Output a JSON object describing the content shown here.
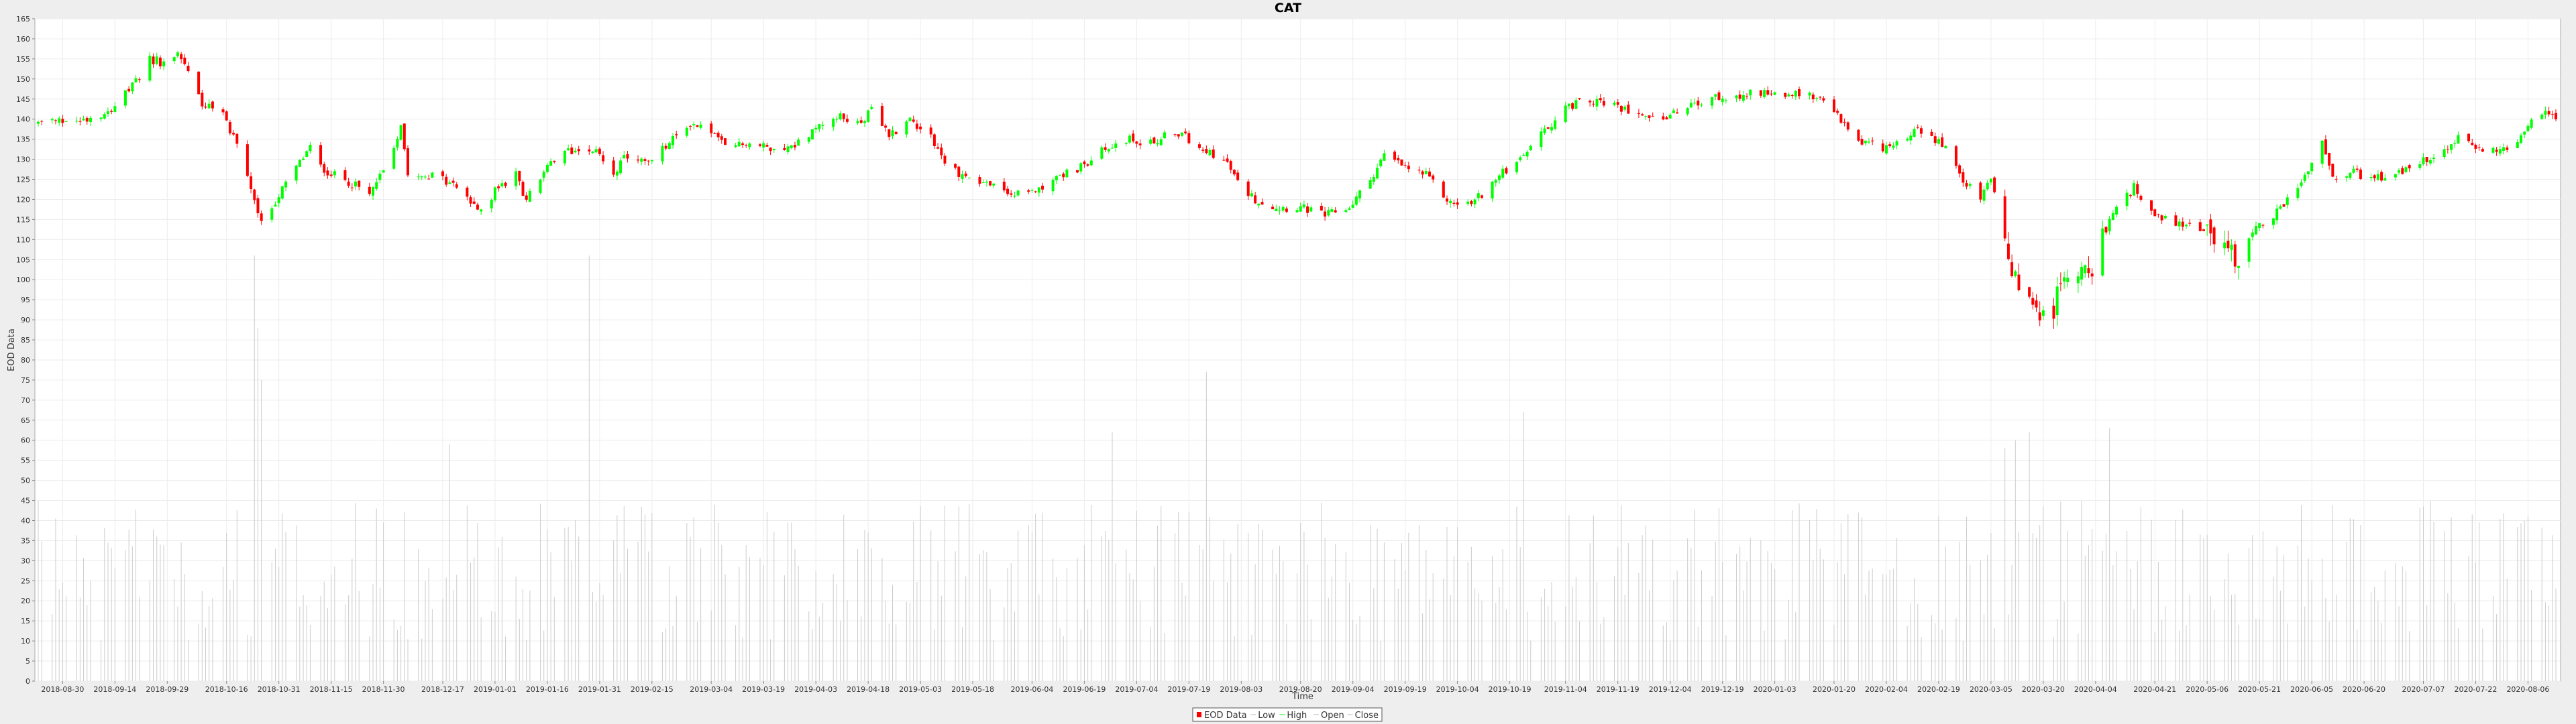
{
  "colors": {
    "background": "#eeeeee",
    "plot_background": "#ffffff",
    "gridline": "#ececec",
    "up_candle": "#00ff00",
    "down_candle": "#ff0000",
    "volume_bar": "#cccccc",
    "axis": "#888888"
  },
  "chart_data": {
    "type": "candlestick",
    "title": "CAT",
    "xlabel": "Time",
    "ylabel": "EOD Data",
    "ylim": [
      0,
      165
    ],
    "y_ticks": [
      0,
      5,
      10,
      15,
      20,
      25,
      30,
      35,
      40,
      45,
      50,
      55,
      60,
      65,
      70,
      75,
      80,
      85,
      90,
      95,
      100,
      105,
      110,
      115,
      120,
      125,
      130,
      135,
      140,
      145,
      150,
      155,
      160,
      165
    ],
    "x_range": [
      "2018-08-23",
      "2020-08-14"
    ],
    "x_ticks": [
      "2018-08-30",
      "2018-09-14",
      "2018-09-29",
      "2018-10-16",
      "2018-10-31",
      "2018-11-15",
      "2018-11-30",
      "2018-12-17",
      "2019-01-01",
      "2019-01-16",
      "2019-01-31",
      "2019-02-15",
      "2019-03-04",
      "2019-03-19",
      "2019-04-03",
      "2019-04-18",
      "2019-05-03",
      "2019-05-18",
      "2019-06-04",
      "2019-06-19",
      "2019-07-04",
      "2019-07-19",
      "2019-08-03",
      "2019-08-20",
      "2019-09-04",
      "2019-09-19",
      "2019-10-04",
      "2019-10-19",
      "2019-11-04",
      "2019-11-19",
      "2019-12-04",
      "2019-12-19",
      "2020-01-03",
      "2020-01-20",
      "2020-02-04",
      "2020-02-19",
      "2020-03-05",
      "2020-03-20",
      "2020-04-04",
      "2020-04-21",
      "2020-05-06",
      "2020-05-21",
      "2020-06-05",
      "2020-06-20",
      "2020-07-07",
      "2020-07-22",
      "2020-08-06"
    ],
    "price_path": [
      [
        "2018-08-23",
        139
      ],
      [
        "2018-09-05",
        140
      ],
      [
        "2018-09-12",
        142
      ],
      [
        "2018-09-19",
        148
      ],
      [
        "2018-09-24",
        155
      ],
      [
        "2018-09-28",
        154
      ],
      [
        "2018-10-02",
        157
      ],
      [
        "2018-10-05",
        152
      ],
      [
        "2018-10-09",
        144
      ],
      [
        "2018-10-15",
        141
      ],
      [
        "2018-10-19",
        134
      ],
      [
        "2018-10-24",
        120
      ],
      [
        "2018-10-26",
        114
      ],
      [
        "2018-10-31",
        121
      ],
      [
        "2018-11-05",
        128
      ],
      [
        "2018-11-09",
        133
      ],
      [
        "2018-11-12",
        128
      ],
      [
        "2018-11-16",
        126
      ],
      [
        "2018-11-21",
        124
      ],
      [
        "2018-11-26",
        121
      ],
      [
        "2018-12-03",
        133
      ],
      [
        "2018-12-05",
        139
      ],
      [
        "2018-12-07",
        127
      ],
      [
        "2018-12-13",
        126
      ],
      [
        "2018-12-20",
        124
      ],
      [
        "2018-12-27",
        117
      ],
      [
        "2019-01-02",
        123
      ],
      [
        "2019-01-07",
        126
      ],
      [
        "2019-01-10",
        120
      ],
      [
        "2019-01-16",
        128
      ],
      [
        "2019-01-22",
        132
      ],
      [
        "2019-01-28",
        133
      ],
      [
        "2019-01-31",
        131
      ],
      [
        "2019-02-04",
        127
      ],
      [
        "2019-02-08",
        131
      ],
      [
        "2019-02-14",
        129
      ],
      [
        "2019-02-20",
        134
      ],
      [
        "2019-02-26",
        139
      ],
      [
        "2019-03-04",
        137
      ],
      [
        "2019-03-08",
        133
      ],
      [
        "2019-03-14",
        134
      ],
      [
        "2019-03-20",
        133
      ],
      [
        "2019-03-27",
        133
      ],
      [
        "2019-04-02",
        137
      ],
      [
        "2019-04-08",
        141
      ],
      [
        "2019-04-15",
        139
      ],
      [
        "2019-04-19",
        142
      ],
      [
        "2019-04-24",
        136
      ],
      [
        "2019-04-30",
        140
      ],
      [
        "2019-05-06",
        136
      ],
      [
        "2019-05-10",
        129
      ],
      [
        "2019-05-15",
        126
      ],
      [
        "2019-05-22",
        124
      ],
      [
        "2019-05-30",
        121
      ],
      [
        "2019-06-04",
        122
      ],
      [
        "2019-06-10",
        125
      ],
      [
        "2019-06-18",
        128
      ],
      [
        "2019-06-24",
        132
      ],
      [
        "2019-07-01",
        135
      ],
      [
        "2019-07-08",
        134
      ],
      [
        "2019-07-15",
        137
      ],
      [
        "2019-07-19",
        135
      ],
      [
        "2019-07-25",
        132
      ],
      [
        "2019-07-30",
        129
      ],
      [
        "2019-08-02",
        124
      ],
      [
        "2019-08-07",
        120
      ],
      [
        "2019-08-13",
        118
      ],
      [
        "2019-08-20",
        118
      ],
      [
        "2019-08-27",
        116
      ],
      [
        "2019-09-03",
        118
      ],
      [
        "2019-09-09",
        125
      ],
      [
        "2019-09-13",
        131
      ],
      [
        "2019-09-19",
        128
      ],
      [
        "2019-09-25",
        126
      ],
      [
        "2019-10-02",
        119
      ],
      [
        "2019-10-08",
        119
      ],
      [
        "2019-10-14",
        124
      ],
      [
        "2019-10-21",
        130
      ],
      [
        "2019-10-28",
        136
      ],
      [
        "2019-11-04",
        143
      ],
      [
        "2019-11-11",
        145
      ],
      [
        "2019-11-18",
        143
      ],
      [
        "2019-11-25",
        142
      ],
      [
        "2019-12-02",
        140
      ],
      [
        "2019-12-09",
        143
      ],
      [
        "2019-12-16",
        145
      ],
      [
        "2019-12-23",
        146
      ],
      [
        "2019-12-31",
        147
      ],
      [
        "2020-01-07",
        146
      ],
      [
        "2020-01-14",
        146
      ],
      [
        "2020-01-21",
        141
      ],
      [
        "2020-01-27",
        134
      ],
      [
        "2020-02-03",
        133
      ],
      [
        "2020-02-10",
        136
      ],
      [
        "2020-02-14",
        137
      ],
      [
        "2020-02-20",
        134
      ],
      [
        "2020-02-26",
        125
      ],
      [
        "2020-03-02",
        120
      ],
      [
        "2020-03-05",
        126
      ],
      [
        "2020-03-09",
        110
      ],
      [
        "2020-03-12",
        100
      ],
      [
        "2020-03-16",
        96
      ],
      [
        "2020-03-18",
        90
      ],
      [
        "2020-03-20",
        95
      ],
      [
        "2020-03-23",
        93
      ],
      [
        "2020-03-27",
        102
      ],
      [
        "2020-04-03",
        104
      ],
      [
        "2020-04-09",
        116
      ],
      [
        "2020-04-15",
        123
      ],
      [
        "2020-04-17",
        121
      ],
      [
        "2020-04-21",
        116
      ],
      [
        "2020-04-28",
        114
      ],
      [
        "2020-05-04",
        113
      ],
      [
        "2020-05-11",
        109
      ],
      [
        "2020-05-14",
        105
      ],
      [
        "2020-05-19",
        112
      ],
      [
        "2020-05-26",
        117
      ],
      [
        "2020-06-02",
        124
      ],
      [
        "2020-06-08",
        134
      ],
      [
        "2020-06-12",
        124
      ],
      [
        "2020-06-16",
        127
      ],
      [
        "2020-06-22",
        125
      ],
      [
        "2020-06-29",
        126
      ],
      [
        "2020-07-06",
        129
      ],
      [
        "2020-07-13",
        132
      ],
      [
        "2020-07-17",
        135
      ],
      [
        "2020-07-23",
        133
      ],
      [
        "2020-07-31",
        132
      ],
      [
        "2020-08-06",
        138
      ],
      [
        "2020-08-10",
        142
      ],
      [
        "2020-08-14",
        141
      ]
    ],
    "volume_range": [
      10,
      45
    ],
    "volume_spikes": [
      [
        "2018-10-24",
        106
      ],
      [
        "2018-10-25",
        88
      ],
      [
        "2018-10-26",
        75
      ],
      [
        "2018-11-28",
        43
      ],
      [
        "2018-12-19",
        59
      ],
      [
        "2019-01-28",
        106
      ],
      [
        "2019-07-24",
        77
      ],
      [
        "2019-10-23",
        67
      ],
      [
        "2020-01-27",
        42
      ],
      [
        "2020-03-09",
        58
      ],
      [
        "2020-03-12",
        60
      ],
      [
        "2020-03-16",
        62
      ],
      [
        "2020-04-08",
        63
      ],
      [
        "2019-06-27",
        62
      ],
      [
        "2018-09-26",
        36
      ]
    ],
    "legend": [
      "EOD Data",
      "Low",
      "High",
      "Open",
      "Close"
    ],
    "legend_position": "bottom-center"
  }
}
